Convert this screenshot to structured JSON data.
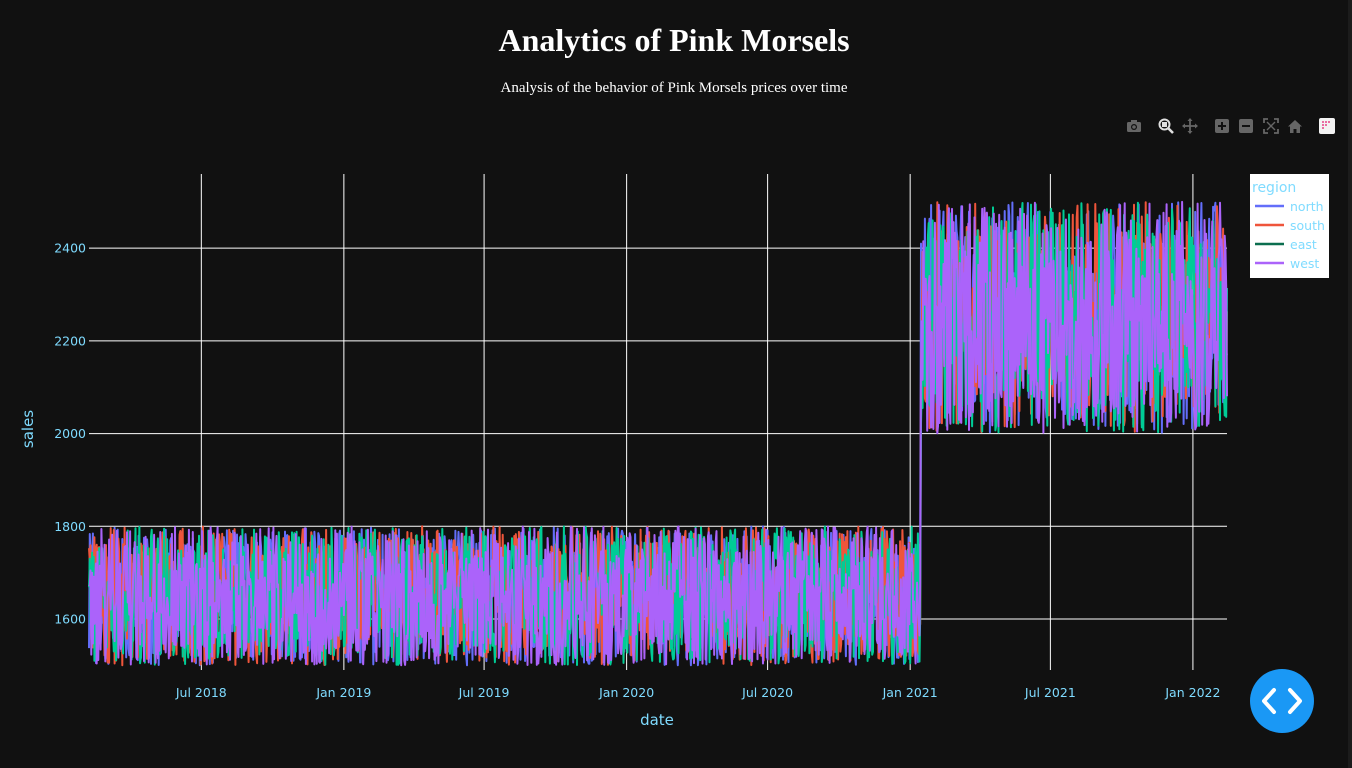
{
  "header": {
    "title": "Analytics of Pink Morsels",
    "subtitle": "Analysis of the behavior of Pink Morsels prices over time"
  },
  "modebar": {
    "buttons": [
      "camera-icon",
      "zoom-icon",
      "pan-icon",
      "zoom-in-icon",
      "zoom-out-icon",
      "autoscale-icon",
      "reset-axes-icon",
      "plotly-logo-icon"
    ]
  },
  "colors": {
    "background": "#111111",
    "grid": "#ffffff",
    "axis_text": "#7fdbff",
    "north": "#636efa",
    "south": "#ef553b",
    "east": "#00cc96",
    "west": "#ab63fa",
    "fab": "#1a98f5"
  },
  "chart_data": {
    "type": "line",
    "xlabel": "date",
    "ylabel": "sales",
    "x_range": [
      "2018-02-06",
      "2022-02-14"
    ],
    "ylim": [
      1490,
      2560
    ],
    "x_ticks": [
      {
        "date": "2018-07-01",
        "label": "Jul 2018"
      },
      {
        "date": "2019-01-01",
        "label": "Jan 2019"
      },
      {
        "date": "2019-07-01",
        "label": "Jul 2019"
      },
      {
        "date": "2020-01-01",
        "label": "Jan 2020"
      },
      {
        "date": "2020-07-01",
        "label": "Jul 2020"
      },
      {
        "date": "2021-01-01",
        "label": "Jan 2021"
      },
      {
        "date": "2021-07-01",
        "label": "Jul 2021"
      },
      {
        "date": "2022-01-01",
        "label": "Jan 2022"
      }
    ],
    "y_ticks": [
      1600,
      1800,
      2000,
      2200,
      2400
    ],
    "grid": true,
    "legend": {
      "title": "region",
      "position": "top-right",
      "entries": [
        "north",
        "south",
        "east",
        "west"
      ]
    },
    "series_date_range": [
      "2018-02-06",
      "2022-02-14"
    ],
    "price_change_date": "2021-01-15",
    "series": [
      {
        "name": "north",
        "before_range": [
          1500,
          1800
        ],
        "after_range": [
          2000,
          2500
        ]
      },
      {
        "name": "south",
        "before_range": [
          1500,
          1800
        ],
        "after_range": [
          2000,
          2500
        ]
      },
      {
        "name": "east",
        "before_range": [
          1500,
          1800
        ],
        "after_range": [
          2000,
          2500
        ]
      },
      {
        "name": "west",
        "before_range": [
          1500,
          1800
        ],
        "after_range": [
          2000,
          2500
        ]
      }
    ]
  }
}
